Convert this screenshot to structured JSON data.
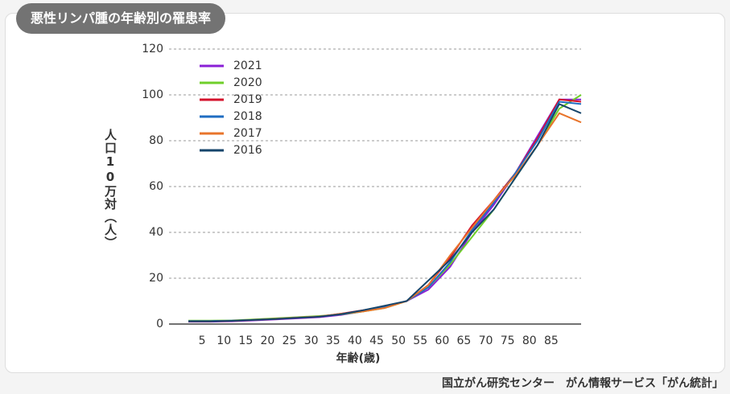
{
  "chart_data": {
    "type": "line",
    "title": "悪性リンパ腫の年齢別の罹患率",
    "y_label": "人口10万対（人）",
    "x_label": "年齢(歳)",
    "source": "国立がん研究センター　がん情報サービス「がん統計」",
    "categories": [
      null,
      "5",
      "10",
      "15",
      "20",
      "25",
      "30",
      "35",
      "40",
      "45",
      "50",
      "55",
      "60",
      "65",
      "70",
      "75",
      "80",
      "85",
      null
    ],
    "ylim": [
      0,
      120
    ],
    "yticks": [
      0,
      20,
      40,
      60,
      80,
      100,
      120
    ],
    "grid": true,
    "legend": "top-left",
    "series": [
      {
        "name": "2021",
        "color": "#8a1fd6",
        "values": [
          1,
          1,
          1.2,
          1.6,
          2,
          2.5,
          3,
          4,
          5.5,
          7.5,
          10,
          15,
          25,
          40,
          52,
          66,
          82,
          98,
          98
        ]
      },
      {
        "name": "2020",
        "color": "#6fcf2a",
        "values": [
          1.5,
          1.5,
          1.6,
          2,
          2.5,
          3,
          3.5,
          4.2,
          5.5,
          7,
          10,
          16,
          26,
          38,
          50,
          64,
          78,
          94,
          100
        ]
      },
      {
        "name": "2019",
        "color": "#d4112b",
        "values": [
          1.2,
          1.2,
          1.4,
          1.8,
          2.2,
          2.8,
          3.2,
          4.5,
          6,
          7.5,
          10,
          17,
          29,
          43,
          54,
          66,
          81,
          98,
          97
        ]
      },
      {
        "name": "2018",
        "color": "#1f6dc2",
        "values": [
          1.3,
          1.3,
          1.5,
          1.8,
          2.3,
          2.8,
          3.3,
          4.3,
          5.8,
          7.5,
          10,
          16,
          27,
          41,
          53,
          66,
          80,
          97,
          96
        ]
      },
      {
        "name": "2017",
        "color": "#e8742b",
        "values": [
          1.2,
          1.2,
          1.4,
          1.8,
          2.3,
          2.8,
          3.3,
          4.5,
          5.5,
          7,
          10,
          17,
          30,
          42,
          54,
          65,
          78,
          92,
          88
        ]
      },
      {
        "name": "2016",
        "color": "#16456b",
        "values": [
          1.2,
          1.2,
          1.4,
          1.8,
          2.2,
          2.7,
          3.2,
          4.3,
          6,
          8,
          10,
          19,
          28,
          40,
          50,
          64,
          78,
          96,
          92
        ]
      }
    ]
  }
}
